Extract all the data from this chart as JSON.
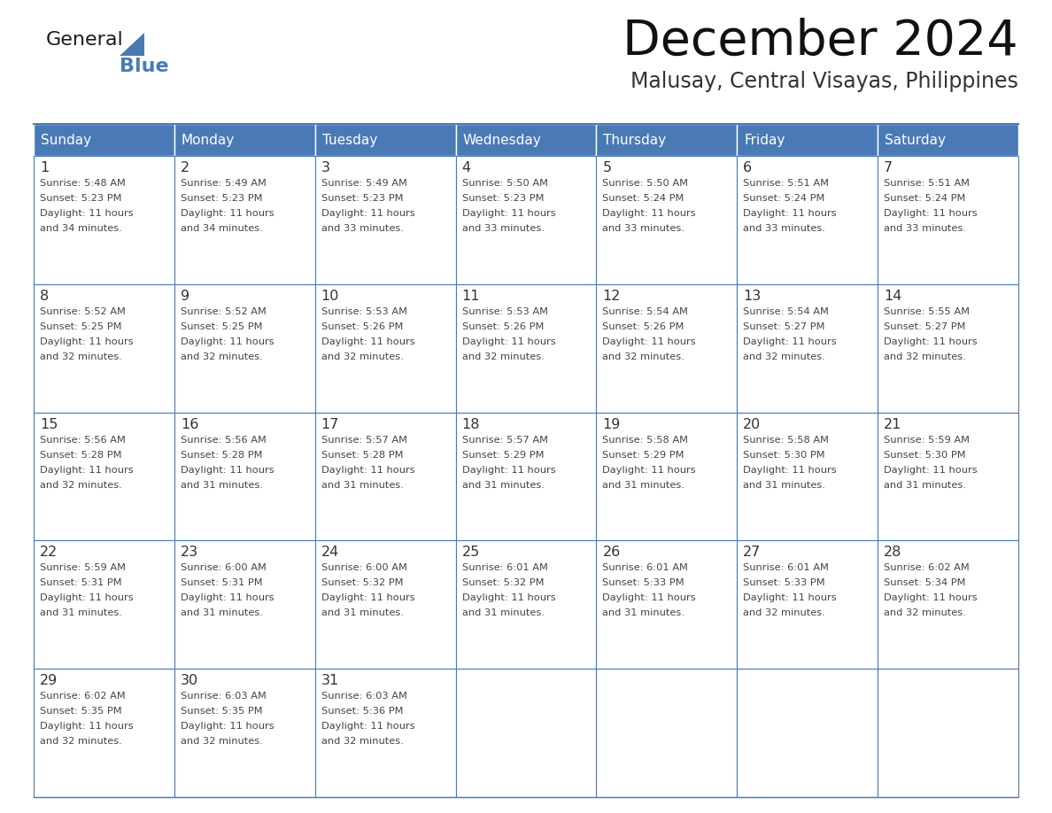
{
  "title": "December 2024",
  "subtitle": "Malusay, Central Visayas, Philippines",
  "header_color": "#4a7ab5",
  "header_text_color": "#ffffff",
  "cell_border_color": "#4a7ab5",
  "day_number_color": "#333333",
  "cell_text_color": "#444444",
  "background_color": "#ffffff",
  "days_of_week": [
    "Sunday",
    "Monday",
    "Tuesday",
    "Wednesday",
    "Thursday",
    "Friday",
    "Saturday"
  ],
  "calendar_data": [
    [
      {
        "day": 1,
        "sunrise": "5:48 AM",
        "sunset": "5:23 PM",
        "daylight_hours": 11,
        "daylight_min": 34
      },
      {
        "day": 2,
        "sunrise": "5:49 AM",
        "sunset": "5:23 PM",
        "daylight_hours": 11,
        "daylight_min": 34
      },
      {
        "day": 3,
        "sunrise": "5:49 AM",
        "sunset": "5:23 PM",
        "daylight_hours": 11,
        "daylight_min": 33
      },
      {
        "day": 4,
        "sunrise": "5:50 AM",
        "sunset": "5:23 PM",
        "daylight_hours": 11,
        "daylight_min": 33
      },
      {
        "day": 5,
        "sunrise": "5:50 AM",
        "sunset": "5:24 PM",
        "daylight_hours": 11,
        "daylight_min": 33
      },
      {
        "day": 6,
        "sunrise": "5:51 AM",
        "sunset": "5:24 PM",
        "daylight_hours": 11,
        "daylight_min": 33
      },
      {
        "day": 7,
        "sunrise": "5:51 AM",
        "sunset": "5:24 PM",
        "daylight_hours": 11,
        "daylight_min": 33
      }
    ],
    [
      {
        "day": 8,
        "sunrise": "5:52 AM",
        "sunset": "5:25 PM",
        "daylight_hours": 11,
        "daylight_min": 32
      },
      {
        "day": 9,
        "sunrise": "5:52 AM",
        "sunset": "5:25 PM",
        "daylight_hours": 11,
        "daylight_min": 32
      },
      {
        "day": 10,
        "sunrise": "5:53 AM",
        "sunset": "5:26 PM",
        "daylight_hours": 11,
        "daylight_min": 32
      },
      {
        "day": 11,
        "sunrise": "5:53 AM",
        "sunset": "5:26 PM",
        "daylight_hours": 11,
        "daylight_min": 32
      },
      {
        "day": 12,
        "sunrise": "5:54 AM",
        "sunset": "5:26 PM",
        "daylight_hours": 11,
        "daylight_min": 32
      },
      {
        "day": 13,
        "sunrise": "5:54 AM",
        "sunset": "5:27 PM",
        "daylight_hours": 11,
        "daylight_min": 32
      },
      {
        "day": 14,
        "sunrise": "5:55 AM",
        "sunset": "5:27 PM",
        "daylight_hours": 11,
        "daylight_min": 32
      }
    ],
    [
      {
        "day": 15,
        "sunrise": "5:56 AM",
        "sunset": "5:28 PM",
        "daylight_hours": 11,
        "daylight_min": 32
      },
      {
        "day": 16,
        "sunrise": "5:56 AM",
        "sunset": "5:28 PM",
        "daylight_hours": 11,
        "daylight_min": 31
      },
      {
        "day": 17,
        "sunrise": "5:57 AM",
        "sunset": "5:28 PM",
        "daylight_hours": 11,
        "daylight_min": 31
      },
      {
        "day": 18,
        "sunrise": "5:57 AM",
        "sunset": "5:29 PM",
        "daylight_hours": 11,
        "daylight_min": 31
      },
      {
        "day": 19,
        "sunrise": "5:58 AM",
        "sunset": "5:29 PM",
        "daylight_hours": 11,
        "daylight_min": 31
      },
      {
        "day": 20,
        "sunrise": "5:58 AM",
        "sunset": "5:30 PM",
        "daylight_hours": 11,
        "daylight_min": 31
      },
      {
        "day": 21,
        "sunrise": "5:59 AM",
        "sunset": "5:30 PM",
        "daylight_hours": 11,
        "daylight_min": 31
      }
    ],
    [
      {
        "day": 22,
        "sunrise": "5:59 AM",
        "sunset": "5:31 PM",
        "daylight_hours": 11,
        "daylight_min": 31
      },
      {
        "day": 23,
        "sunrise": "6:00 AM",
        "sunset": "5:31 PM",
        "daylight_hours": 11,
        "daylight_min": 31
      },
      {
        "day": 24,
        "sunrise": "6:00 AM",
        "sunset": "5:32 PM",
        "daylight_hours": 11,
        "daylight_min": 31
      },
      {
        "day": 25,
        "sunrise": "6:01 AM",
        "sunset": "5:32 PM",
        "daylight_hours": 11,
        "daylight_min": 31
      },
      {
        "day": 26,
        "sunrise": "6:01 AM",
        "sunset": "5:33 PM",
        "daylight_hours": 11,
        "daylight_min": 31
      },
      {
        "day": 27,
        "sunrise": "6:01 AM",
        "sunset": "5:33 PM",
        "daylight_hours": 11,
        "daylight_min": 32
      },
      {
        "day": 28,
        "sunrise": "6:02 AM",
        "sunset": "5:34 PM",
        "daylight_hours": 11,
        "daylight_min": 32
      }
    ],
    [
      {
        "day": 29,
        "sunrise": "6:02 AM",
        "sunset": "5:35 PM",
        "daylight_hours": 11,
        "daylight_min": 32
      },
      {
        "day": 30,
        "sunrise": "6:03 AM",
        "sunset": "5:35 PM",
        "daylight_hours": 11,
        "daylight_min": 32
      },
      {
        "day": 31,
        "sunrise": "6:03 AM",
        "sunset": "5:36 PM",
        "daylight_hours": 11,
        "daylight_min": 32
      },
      null,
      null,
      null,
      null
    ]
  ],
  "logo_text1": "General",
  "logo_text2": "Blue",
  "logo_color1": "#1a1a1a",
  "logo_color2": "#4a7ab5",
  "fig_width": 11.88,
  "fig_height": 9.18,
  "dpi": 100
}
